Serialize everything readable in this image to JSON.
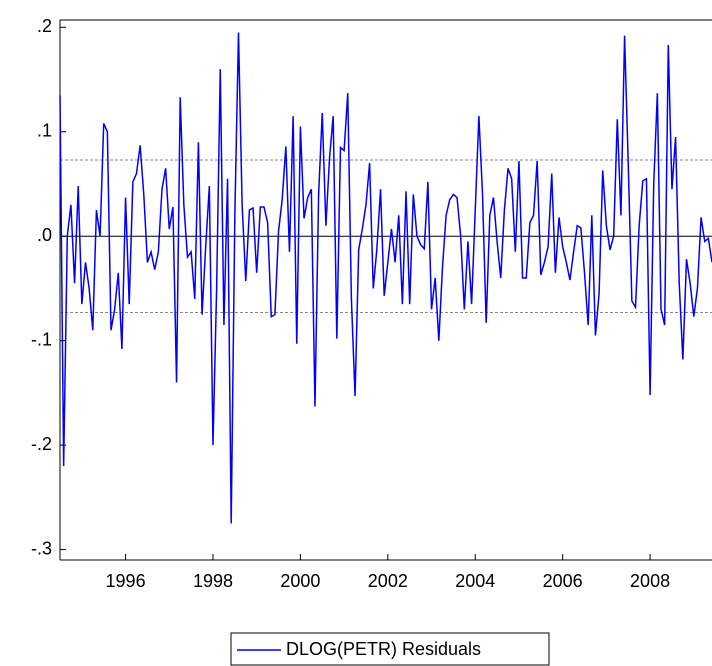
{
  "chart_data": {
    "type": "line",
    "categories": [
      null,
      null,
      null,
      null,
      null,
      null,
      null,
      null,
      null,
      null,
      null,
      null,
      null,
      null,
      null,
      null,
      null,
      null,
      "1996",
      null,
      null,
      null,
      null,
      null,
      null,
      null,
      null,
      null,
      null,
      null,
      null,
      null,
      null,
      null,
      null,
      null,
      null,
      null,
      null,
      null,
      null,
      null,
      "1998",
      null,
      null,
      null,
      null,
      null,
      null,
      null,
      null,
      null,
      null,
      null,
      null,
      null,
      null,
      null,
      null,
      null,
      null,
      null,
      null,
      null,
      null,
      null,
      "2000",
      null,
      null,
      null,
      null,
      null,
      null,
      null,
      null,
      null,
      null,
      null,
      null,
      null,
      null,
      null,
      null,
      null,
      null,
      null,
      null,
      null,
      null,
      null,
      "2002",
      null,
      null,
      null,
      null,
      null,
      null,
      null,
      null,
      null,
      null,
      null,
      null,
      null,
      null,
      null,
      null,
      null,
      null,
      null,
      null,
      null,
      null,
      null,
      "2004",
      null,
      null,
      null,
      null,
      null,
      null,
      null,
      null,
      null,
      null,
      null,
      null,
      null,
      null,
      null,
      null,
      null,
      null,
      null,
      null,
      null,
      null,
      null,
      "2006",
      null,
      null,
      null,
      null,
      null,
      null,
      null,
      null,
      null,
      null,
      null,
      null,
      null,
      null,
      null,
      null,
      null,
      null,
      null,
      null,
      null,
      null,
      null,
      "2008",
      null,
      null,
      null,
      null,
      null,
      null,
      null,
      null,
      null,
      null,
      null,
      null,
      null,
      null,
      null,
      null,
      null
    ],
    "series": [
      {
        "name": "DLOG(PETR) Residuals",
        "color": "#0000ff",
        "values": [
          0.135,
          -0.22,
          0,
          0.03,
          -0.045,
          0.048,
          -0.065,
          -0.025,
          -0.05,
          -0.09,
          0.025,
          0,
          0.108,
          0.1,
          -0.09,
          -0.07,
          -0.035,
          -0.108,
          0.037,
          -0.065,
          0.052,
          0.06,
          0.087,
          0.04,
          -0.025,
          -0.015,
          -0.032,
          -0.015,
          0.045,
          0.065,
          0.007,
          0.028,
          -0.14,
          0.133,
          0.03,
          -0.02,
          -0.015,
          -0.06,
          0.09,
          -0.075,
          -0.01,
          0.048,
          -0.2,
          -0.05,
          0.16,
          -0.085,
          0.055,
          -0.275,
          0.02,
          0.195,
          0.03,
          -0.043,
          0.025,
          0.027,
          -0.035,
          0.028,
          0.028,
          0.013,
          -0.077,
          -0.075,
          0.005,
          0.035,
          0.086,
          -0.015,
          0.115,
          -0.103,
          0.105,
          0.017,
          0.037,
          0.045,
          -0.163,
          0.04,
          0.118,
          0.01,
          0.075,
          0.115,
          -0.098,
          0.085,
          0.082,
          0.137,
          -0.06,
          -0.153,
          -0.013,
          0.007,
          0.03,
          0.07,
          -0.05,
          -0.012,
          0.045,
          -0.057,
          -0.025,
          0.007,
          -0.025,
          0.02,
          -0.065,
          0.043,
          -0.065,
          0.04,
          0,
          -0.008,
          -0.012,
          0.052,
          -0.07,
          -0.04,
          -0.1,
          -0.03,
          0.02,
          0.035,
          0.04,
          0.037,
          0,
          -0.07,
          -0.005,
          -0.065,
          0.025,
          0.115,
          0.04,
          -0.083,
          0.02,
          0.037,
          -0.005,
          -0.04,
          0.025,
          0.065,
          0.055,
          -0.015,
          0.072,
          -0.04,
          -0.04,
          0.013,
          0.02,
          0.072,
          -0.037,
          -0.025,
          -0.01,
          0.06,
          -0.035,
          0.018,
          -0.01,
          -0.025,
          -0.042,
          -0.015,
          0.01,
          0.008,
          -0.035,
          -0.085,
          0.02,
          -0.095,
          -0.055,
          0.063,
          0.01,
          -0.013,
          0,
          0.112,
          0.02,
          0.192,
          0.07,
          -0.062,
          -0.068,
          0.01,
          0.053,
          0.055,
          -0.152,
          0.05,
          0.137,
          -0.07,
          -0.085,
          0.183,
          0.045,
          0.095,
          -0.045,
          -0.118,
          -0.022,
          -0.045,
          -0.077,
          -0.05,
          0.018,
          -0.005,
          -0.002,
          -0.025
        ]
      }
    ],
    "std_band": [
      -0.073,
      0.073
    ],
    "ylim": [
      -0.31,
      0.207
    ],
    "yticks": [
      {
        "value": -0.3,
        "label": "-.3"
      },
      {
        "value": -0.2,
        "label": "-.2"
      },
      {
        "value": -0.1,
        "label": "-.1"
      },
      {
        "value": 0,
        "label": ".0"
      },
      {
        "value": 0.1,
        "label": ".1"
      },
      {
        "value": 0.2,
        "label": ".2"
      }
    ],
    "legend": "bottom"
  }
}
